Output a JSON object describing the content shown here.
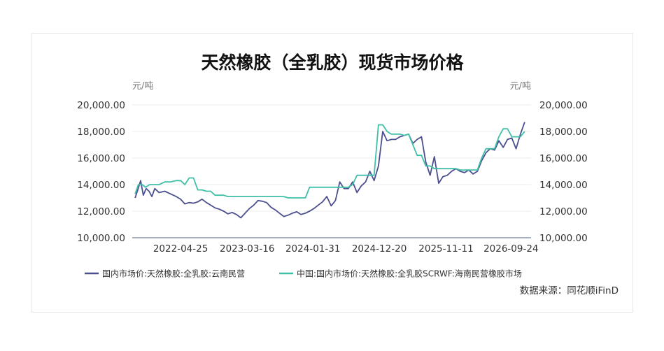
{
  "chart_data": {
    "type": "line",
    "title": "天然橡胶（全乳胶）现货市场价格",
    "y_unit_left": "元/吨",
    "y_unit_right": "元/吨",
    "ylim": [
      10000,
      20000
    ],
    "y_ticks": [
      "20,000.00",
      "18,000.00",
      "16,000.00",
      "14,000.00",
      "12,000.00",
      "10,000.00"
    ],
    "y_tick_values": [
      20000,
      18000,
      16000,
      14000,
      12000,
      10000
    ],
    "x_ticks": [
      "2022-04-25",
      "2023-03-16",
      "2024-01-31",
      "2024-12-20",
      "2025-11-11",
      "2026-09-24"
    ],
    "xlim": [
      "2021-09-01",
      "2026-12-31"
    ],
    "grid": true,
    "legend_position": "bottom",
    "source": "数据来源：同花顺iFinD",
    "series": [
      {
        "name": "国内市场价:天然橡胶:全乳胶:云南民营",
        "color": "#4b4f8f",
        "x": [
          "2021-09-15",
          "2021-09-28",
          "2021-10-12",
          "2021-10-25",
          "2021-11-08",
          "2021-11-22",
          "2021-12-06",
          "2021-12-20",
          "2022-01-10",
          "2022-02-07",
          "2022-03-07",
          "2022-04-04",
          "2022-04-25",
          "2022-05-16",
          "2022-06-06",
          "2022-06-27",
          "2022-07-18",
          "2022-08-08",
          "2022-08-29",
          "2022-09-19",
          "2022-10-10",
          "2022-10-31",
          "2022-11-21",
          "2022-12-12",
          "2023-01-02",
          "2023-01-23",
          "2023-02-13",
          "2023-03-06",
          "2023-03-27",
          "2023-04-17",
          "2023-05-08",
          "2023-05-29",
          "2023-06-19",
          "2023-07-10",
          "2023-07-31",
          "2023-08-21",
          "2023-09-11",
          "2023-10-02",
          "2023-10-23",
          "2023-11-13",
          "2023-12-04",
          "2023-12-25",
          "2024-01-15",
          "2024-02-05",
          "2024-02-26",
          "2024-03-18",
          "2024-04-08",
          "2024-04-29",
          "2024-05-20",
          "2024-06-10",
          "2024-07-01",
          "2024-07-22",
          "2024-08-12",
          "2024-09-02",
          "2024-09-23",
          "2024-10-14",
          "2024-11-04",
          "2024-11-25",
          "2024-12-16",
          "2025-01-06",
          "2025-01-27",
          "2025-02-17",
          "2025-03-10",
          "2025-03-31",
          "2025-04-21",
          "2025-05-12",
          "2025-06-02",
          "2025-06-23",
          "2025-07-14",
          "2025-08-04",
          "2025-08-25",
          "2025-09-15",
          "2025-10-06",
          "2025-10-27",
          "2025-11-17",
          "2025-12-08",
          "2025-12-29",
          "2026-01-19",
          "2026-02-09",
          "2026-03-02",
          "2026-03-23",
          "2026-04-13",
          "2026-05-04",
          "2026-05-25",
          "2026-06-15",
          "2026-07-06",
          "2026-07-27",
          "2026-08-17",
          "2026-09-07",
          "2026-09-28",
          "2026-10-19",
          "2026-11-09",
          "2026-11-30"
        ],
        "values": [
          13000,
          13600,
          14300,
          13200,
          13700,
          13500,
          13100,
          13700,
          13400,
          13500,
          13300,
          13100,
          12900,
          12550,
          12650,
          12600,
          12700,
          12900,
          12650,
          12450,
          12250,
          12150,
          12000,
          11800,
          11900,
          11750,
          11500,
          11850,
          12200,
          12450,
          12800,
          12750,
          12650,
          12300,
          12100,
          11850,
          11600,
          11700,
          11850,
          11950,
          11750,
          11850,
          12000,
          12200,
          12450,
          12700,
          13100,
          12400,
          12800,
          14200,
          13700,
          13700,
          14200,
          13400,
          13900,
          14200,
          15000,
          14300,
          15400,
          18000,
          17300,
          17400,
          17400,
          17600,
          17700,
          17800,
          17100,
          17400,
          17600,
          15700,
          14700,
          16100,
          14100,
          14600,
          14700,
          15000,
          15200,
          15000,
          14900,
          15100,
          14800,
          15000,
          15800,
          16400,
          16700,
          16600,
          17300,
          16800,
          17400,
          17500,
          16700,
          17800,
          18700
        ]
      },
      {
        "name": "中国:国内市场价:天然橡胶:全乳胶SCRWF:海南民营橡胶市场",
        "color": "#40bfa8",
        "x": [
          "2021-09-15",
          "2021-10-01",
          "2021-10-20",
          "2021-11-05",
          "2021-11-25",
          "2021-12-15",
          "2022-01-10",
          "2022-02-07",
          "2022-03-07",
          "2022-04-04",
          "2022-04-25",
          "2022-05-16",
          "2022-06-06",
          "2022-06-27",
          "2022-07-18",
          "2022-08-08",
          "2022-08-29",
          "2022-09-19",
          "2022-10-10",
          "2022-10-31",
          "2022-11-21",
          "2022-12-12",
          "2023-01-02",
          "2023-01-23",
          "2023-02-13",
          "2023-03-06",
          "2023-03-27",
          "2023-04-17",
          "2023-05-08",
          "2023-05-29",
          "2023-06-19",
          "2023-07-10",
          "2023-07-31",
          "2023-08-21",
          "2023-09-11",
          "2023-10-02",
          "2023-10-23",
          "2023-11-13",
          "2023-12-04",
          "2023-12-25",
          "2024-01-15",
          "2024-02-05",
          "2024-02-26",
          "2024-03-18",
          "2024-04-08",
          "2024-04-29",
          "2024-05-20",
          "2024-06-10",
          "2024-07-01",
          "2024-07-22",
          "2024-08-12",
          "2024-09-02",
          "2024-09-23",
          "2024-10-14",
          "2024-11-04",
          "2024-11-25",
          "2024-12-16",
          "2025-01-06",
          "2025-01-27",
          "2025-02-17",
          "2025-03-10",
          "2025-03-31",
          "2025-04-21",
          "2025-05-12",
          "2025-06-02",
          "2025-06-23",
          "2025-07-14",
          "2025-08-04",
          "2025-08-25",
          "2025-09-15",
          "2025-10-06",
          "2025-10-27",
          "2025-11-17",
          "2025-12-08",
          "2025-12-29",
          "2026-01-19",
          "2026-02-09",
          "2026-03-02",
          "2026-03-23",
          "2026-04-13",
          "2026-05-04",
          "2026-05-25",
          "2026-06-15",
          "2026-07-06",
          "2026-07-27",
          "2026-08-17",
          "2026-09-07",
          "2026-09-28",
          "2026-10-19",
          "2026-11-09",
          "2026-11-30"
        ],
        "values": [
          13300,
          14000,
          14000,
          13800,
          14000,
          14000,
          14000,
          14200,
          14200,
          14300,
          14300,
          14000,
          14500,
          14500,
          13600,
          13600,
          13500,
          13500,
          13200,
          13200,
          13200,
          13100,
          13100,
          13100,
          13100,
          13100,
          13100,
          13100,
          13100,
          13100,
          13100,
          13100,
          13100,
          13100,
          13100,
          13000,
          13000,
          13000,
          13000,
          13000,
          13800,
          13800,
          13800,
          13800,
          13800,
          13800,
          13800,
          13800,
          13800,
          13800,
          14000,
          14700,
          14700,
          14700,
          14700,
          14700,
          18500,
          18500,
          18000,
          17800,
          17800,
          17800,
          17700,
          17800,
          17000,
          16200,
          16200,
          15400,
          15400,
          15200,
          15200,
          15200,
          15200,
          15200,
          15200,
          15100,
          15100,
          15100,
          15100,
          15100,
          16000,
          16700,
          16700,
          16700,
          17600,
          18200,
          18200,
          17600,
          17600,
          17600,
          18000
        ]
      }
    ]
  }
}
